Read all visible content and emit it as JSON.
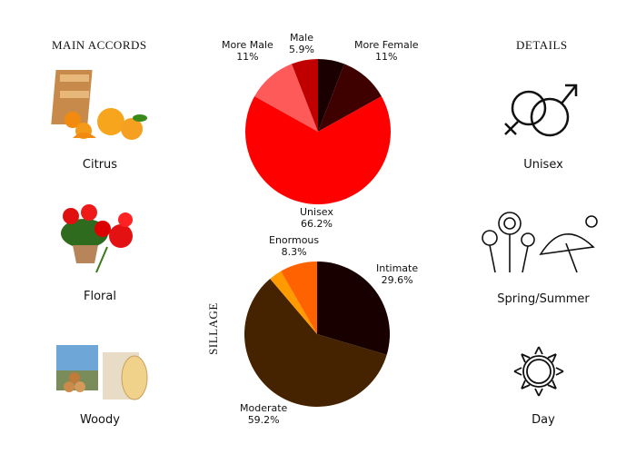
{
  "main_accords": {
    "heading": "Main Accords",
    "items": [
      {
        "label": "Citrus",
        "icon": "citrus-fruit-crate-image"
      },
      {
        "label": "Floral",
        "icon": "red-geranium-flowers-image"
      },
      {
        "label": "Woody",
        "icon": "wood-logs-image"
      }
    ]
  },
  "details": {
    "heading": "Details",
    "items": [
      {
        "label": "Unisex",
        "icon": "gender-symbols-icon"
      },
      {
        "label": "Spring/Summer",
        "icon": "flowers-umbrella-sun-icon"
      },
      {
        "label": "Day",
        "icon": "sun-icon"
      }
    ]
  },
  "chart_data": [
    {
      "type": "pie",
      "title": "",
      "slices": [
        {
          "name": "",
          "value": 5.9,
          "color": "#1a0000",
          "label": ""
        },
        {
          "name": "More Female",
          "value": 11,
          "color": "#3f0000",
          "label": "11%"
        },
        {
          "name": "Unisex",
          "value": 66.2,
          "color": "#ff0000",
          "label": "66.2%"
        },
        {
          "name": "More Male",
          "value": 11,
          "color": "#ff5a5a",
          "label": "11%"
        },
        {
          "name": "Male",
          "value": 5.9,
          "color": "#c00000",
          "label": "5.9%"
        }
      ]
    },
    {
      "type": "pie",
      "title": "Sillage",
      "slices": [
        {
          "name": "Intimate",
          "value": 29.6,
          "color": "#190000",
          "label": "29.6%"
        },
        {
          "name": "Moderate",
          "value": 59.2,
          "color": "#452300",
          "label": "59.2%"
        },
        {
          "name": "",
          "value": 2.9,
          "color": "#ff9a00",
          "label": ""
        },
        {
          "name": "Enormous",
          "value": 8.3,
          "color": "#ff6200",
          "label": "8.3%"
        }
      ]
    }
  ]
}
